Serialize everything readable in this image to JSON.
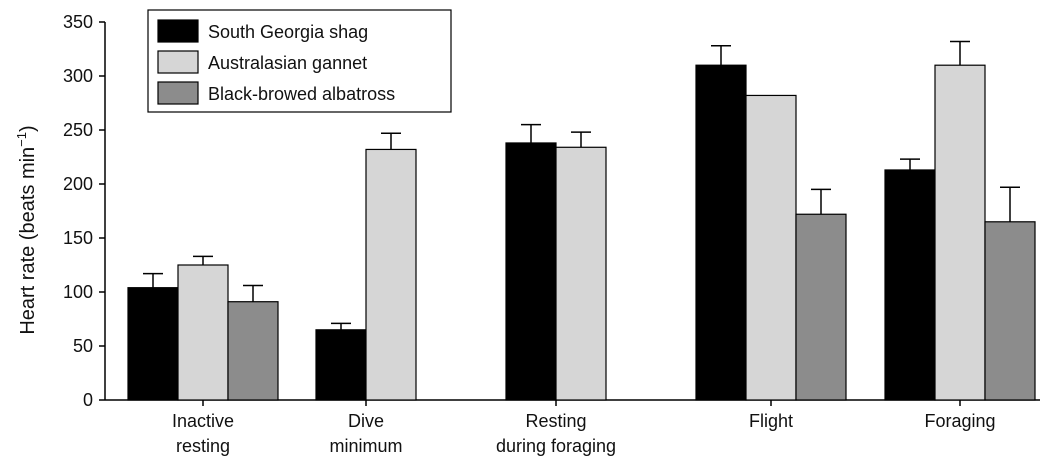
{
  "chart_data": {
    "type": "bar",
    "categories": [
      [
        "Inactive",
        "resting"
      ],
      [
        "Dive",
        "minimum"
      ],
      [
        "Resting",
        "during foraging"
      ],
      [
        "Flight"
      ],
      [
        "Foraging"
      ]
    ],
    "ylabel": "Heart rate (beats min",
    "ylabel_sup": "−1",
    "ylabel_close": ")",
    "ylim": [
      0,
      350
    ],
    "yticks": [
      0,
      50,
      100,
      150,
      200,
      250,
      300,
      350
    ],
    "grid": false,
    "legend_position": "top-left",
    "series": [
      {
        "name": "South Georgia shag",
        "color": "#000000",
        "values": [
          104,
          65,
          238,
          310,
          213
        ],
        "errors": [
          13,
          6,
          17,
          18,
          10
        ]
      },
      {
        "name": "Australasian gannet",
        "color": "#d6d6d6",
        "values": [
          125,
          232,
          234,
          282,
          310
        ],
        "errors": [
          8,
          15,
          14,
          0,
          22
        ]
      },
      {
        "name": "Black-browed albatross",
        "color": "#8c8c8c",
        "values": [
          91,
          null,
          null,
          172,
          165
        ],
        "errors": [
          15,
          null,
          null,
          23,
          32
        ]
      }
    ]
  }
}
